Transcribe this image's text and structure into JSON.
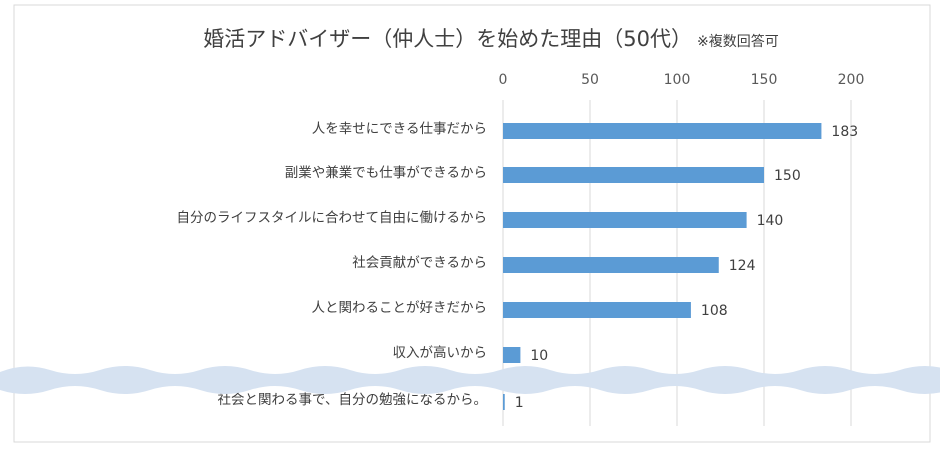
{
  "chart_data": {
    "type": "bar",
    "orientation": "horizontal",
    "title": "婚活アドバイザー（仲人士）を始めた理由（50代）",
    "subtitle": "※複数回答可",
    "categories": [
      "人を幸せにできる仕事だから",
      "副業や兼業でも仕事ができるから",
      "自分のライフスタイルに合わせて自由に働けるから",
      "社会貢献ができるから",
      "人と関わることが好きだから",
      "収入が高いから",
      "社会と関わる事で、自分の勉強になるから。"
    ],
    "values": [
      183,
      150,
      140,
      124,
      108,
      10,
      1
    ],
    "color": "#5b9bd5",
    "xlim": [
      0,
      200
    ],
    "xticks": [
      0,
      50,
      100,
      150,
      200
    ],
    "grid": true
  }
}
